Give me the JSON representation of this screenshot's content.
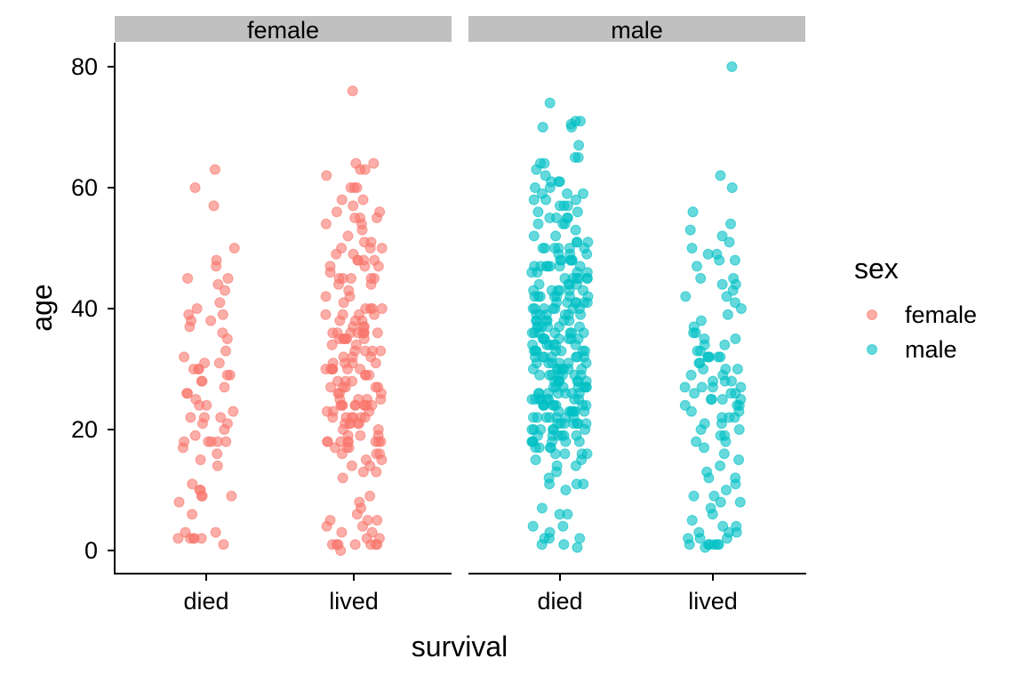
{
  "chart_data": {
    "type": "scatter",
    "subtype": "jittered strip plot, faceted",
    "title": "",
    "xlabel": "survival",
    "ylabel": "age",
    "ylim": [
      -3,
      84
    ],
    "yticks": [
      0,
      20,
      40,
      60,
      80
    ],
    "categories": [
      "died",
      "lived"
    ],
    "grid": false,
    "legend": {
      "title": "sex",
      "placement": "right",
      "entries": [
        {
          "name": "female",
          "color": "#F8766D"
        },
        {
          "name": "male",
          "color": "#00BFC4"
        }
      ]
    },
    "point_alpha": 0.6,
    "facets": [
      {
        "label": "female",
        "color": "#F8766D",
        "series": [
          {
            "category": "died",
            "values": [
              63,
              60,
              57,
              50,
              48,
              47,
              45,
              45,
              44,
              43,
              41,
              40,
              39,
              39,
              38,
              38,
              37,
              36,
              35,
              33,
              32,
              31,
              31,
              30,
              30,
              30,
              29,
              29,
              28,
              28,
              27,
              26,
              26,
              25,
              24,
              24,
              23,
              22,
              22,
              22,
              21,
              21,
              20,
              19,
              18,
              18,
              18,
              18,
              18,
              17,
              16,
              15,
              14,
              11,
              10,
              10,
              9,
              9,
              9,
              8,
              6,
              3,
              3,
              2,
              2,
              2,
              2,
              2,
              1
            ]
          },
          {
            "category": "lived",
            "values": [
              76,
              64,
              64,
              63,
              63,
              62,
              60,
              60,
              60,
              58,
              58,
              57,
              56,
              56,
              55,
              55,
              55,
              54,
              54,
              53,
              52,
              51,
              51,
              50,
              50,
              50,
              49,
              49,
              48,
              48,
              48,
              48,
              47,
              47,
              47,
              46,
              45,
              45,
              45,
              45,
              45,
              44,
              44,
              43,
              42,
              42,
              41,
              40,
              40,
              40,
              40,
              39,
              39,
              39,
              39,
              38,
              38,
              38,
              37,
              37,
              37,
              36,
              36,
              36,
              36,
              36,
              36,
              36,
              36,
              35,
              35,
              35,
              35,
              35,
              35,
              34,
              34,
              33,
              33,
              33,
              33,
              32,
              32,
              32,
              31,
              31,
              31,
              31,
              30,
              30,
              30,
              30,
              30,
              30,
              30,
              29,
              29,
              29,
              28,
              28,
              28,
              27,
              27,
              27,
              27,
              27,
              26,
              26,
              26,
              25,
              25,
              25,
              25,
              24,
              24,
              24,
              24,
              24,
              24,
              24,
              24,
              24,
              23,
              23,
              23,
              22,
              22,
              22,
              22,
              22,
              22,
              21,
              21,
              21,
              21,
              21,
              20,
              20,
              19,
              19,
              19,
              18,
              18,
              18,
              18,
              18,
              18,
              18,
              18,
              17,
              17,
              17,
              16,
              16,
              16,
              15,
              15,
              14,
              14,
              13,
              13,
              12,
              9,
              8,
              7,
              6,
              5,
              5,
              5,
              4,
              4,
              3,
              3,
              2,
              2,
              1,
              1,
              1,
              1,
              1,
              1,
              1,
              0
            ]
          }
        ]
      },
      {
        "label": "male",
        "color": "#00BFC4",
        "series": [
          {
            "category": "died",
            "values": [
              74,
              71,
              71,
              70.5,
              70,
              70,
              67,
              65,
              65,
              64,
              64,
              63,
              62,
              61,
              61,
              61,
              60,
              60,
              59,
              59,
              59,
              58,
              58,
              58,
              57,
              57,
              57,
              56,
              56,
              55,
              55,
              55,
              55,
              54,
              54,
              54,
              53,
              52,
              52,
              51,
              51,
              51,
              50,
              50,
              50,
              50,
              50,
              50,
              49,
              49,
              49,
              48,
              48,
              48,
              48,
              48,
              47,
              47,
              47,
              47,
              47,
              47,
              47,
              46,
              46,
              46,
              46,
              45,
              45,
              45,
              45,
              45,
              45,
              44,
              44,
              44,
              44,
              43,
              43,
              43,
              43,
              43,
              43,
              42,
              42,
              42,
              42,
              42,
              42,
              42,
              41,
              41,
              41,
              41,
              41,
              41,
              40,
              40,
              40,
              40,
              40,
              40,
              40,
              39,
              39,
              39,
              39,
              39,
              39,
              38,
              38,
              38,
              38,
              38,
              38,
              37,
              37,
              37,
              37,
              37,
              37,
              36,
              36,
              36,
              36,
              36,
              36,
              36,
              35,
              35,
              35,
              35,
              35,
              35,
              35,
              34,
              34,
              34,
              34,
              34,
              34,
              33,
              33,
              33,
              33,
              33,
              33,
              33,
              32,
              32,
              32,
              32,
              32,
              32,
              32,
              31,
              31,
              31,
              31,
              31,
              31,
              30,
              30,
              30,
              30,
              30,
              30,
              30,
              29,
              29,
              29,
              29,
              29,
              29,
              29,
              28,
              28,
              28,
              28,
              28,
              28,
              28,
              27,
              27,
              27,
              27,
              27,
              27,
              27,
              26,
              26,
              26,
              26,
              26,
              26,
              26,
              25,
              25,
              25,
              25,
              25,
              25,
              25,
              25,
              24,
              24,
              24,
              24,
              24,
              24,
              24,
              24,
              23,
              23,
              23,
              23,
              23,
              23,
              23,
              22,
              22,
              22,
              22,
              22,
              22,
              22,
              21,
              21,
              21,
              21,
              21,
              21,
              21,
              20,
              20,
              20,
              20,
              20,
              20,
              19,
              19,
              19,
              19,
              19,
              19,
              18,
              18,
              18,
              18,
              18,
              18,
              17,
              17,
              17,
              17,
              16,
              16,
              16,
              16,
              15,
              15,
              14,
              14,
              13,
              12,
              11,
              11,
              11,
              10,
              7,
              6,
              6,
              4,
              4,
              3,
              2,
              2,
              2,
              1,
              1,
              0.5
            ]
          },
          {
            "category": "lived",
            "values": [
              80,
              62,
              60,
              56,
              54,
              53,
              52,
              51,
              50,
              49,
              49,
              48,
              48,
              47,
              45,
              45,
              44,
              44,
              43,
              42,
              42,
              41,
              40,
              39,
              38,
              37,
              36,
              36,
              35,
              35,
              34,
              34,
              33,
              33,
              32,
              32,
              32,
              32,
              32,
              31,
              31,
              30,
              30,
              30,
              29,
              29,
              28,
              28,
              28,
              27,
              27,
              27,
              27,
              26,
              26,
              26,
              25,
              25,
              25,
              25,
              24,
              24,
              24,
              23,
              23,
              22,
              22,
              22,
              21,
              21,
              20,
              20,
              19,
              19,
              18,
              18,
              17,
              16,
              15,
              14,
              13,
              12,
              12,
              11,
              10,
              9,
              9,
              8,
              8,
              7,
              6,
              5,
              4,
              4,
              3,
              3,
              3,
              2,
              2,
              2,
              1,
              1,
              1,
              1,
              1,
              1,
              0.5
            ]
          }
        ]
      }
    ]
  }
}
